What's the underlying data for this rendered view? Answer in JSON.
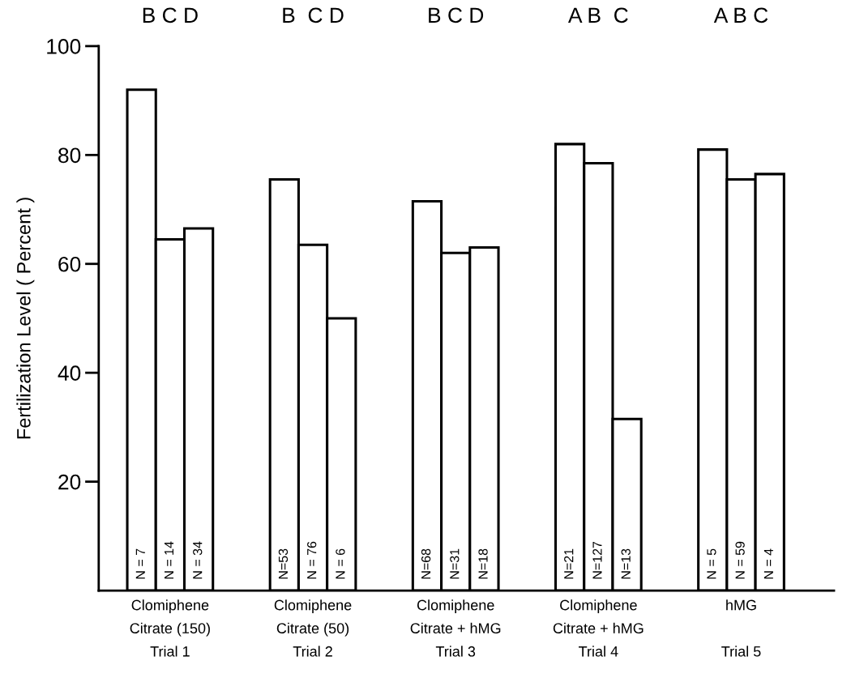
{
  "chart_data": {
    "type": "bar",
    "ylabel": "Fertilization Level ( Percent )",
    "categories": [
      "Clomiphene\nCitrate (150)\nTrial 1",
      "Clomiphene\nCitrate (50)\nTrial 2",
      "Clomiphene\nCitrate + hMG\nTrial 3",
      "Clomiphene\nCitrate + hMG\nTrial 4",
      "hMG\n\nTrial 5"
    ],
    "series": [
      {
        "color": "#ffffff",
        "values": [
          92,
          75.5,
          71.5,
          82,
          81
        ]
      },
      {
        "color": "#ffffff",
        "values": [
          64.5,
          63.5,
          62,
          78.5,
          75.5
        ]
      },
      {
        "color": "#ffffff",
        "values": [
          66.5,
          50,
          63,
          31.5,
          76.5
        ]
      }
    ],
    "annotations": [
      "B C D",
      "B  C D",
      "B C D",
      "A B  C",
      "A B C",
      "N = 7",
      "N = 14",
      "N = 34",
      "N=53",
      "N = 76",
      "N = 6",
      "N=68",
      "N=31",
      "N=18",
      "N=21",
      "N=127",
      "N=13",
      "N = 5",
      "N = 59",
      "N = 4"
    ],
    "ylim": [
      0,
      100
    ],
    "yticks": [
      20,
      40,
      60,
      80,
      100
    ],
    "grid": false
  }
}
